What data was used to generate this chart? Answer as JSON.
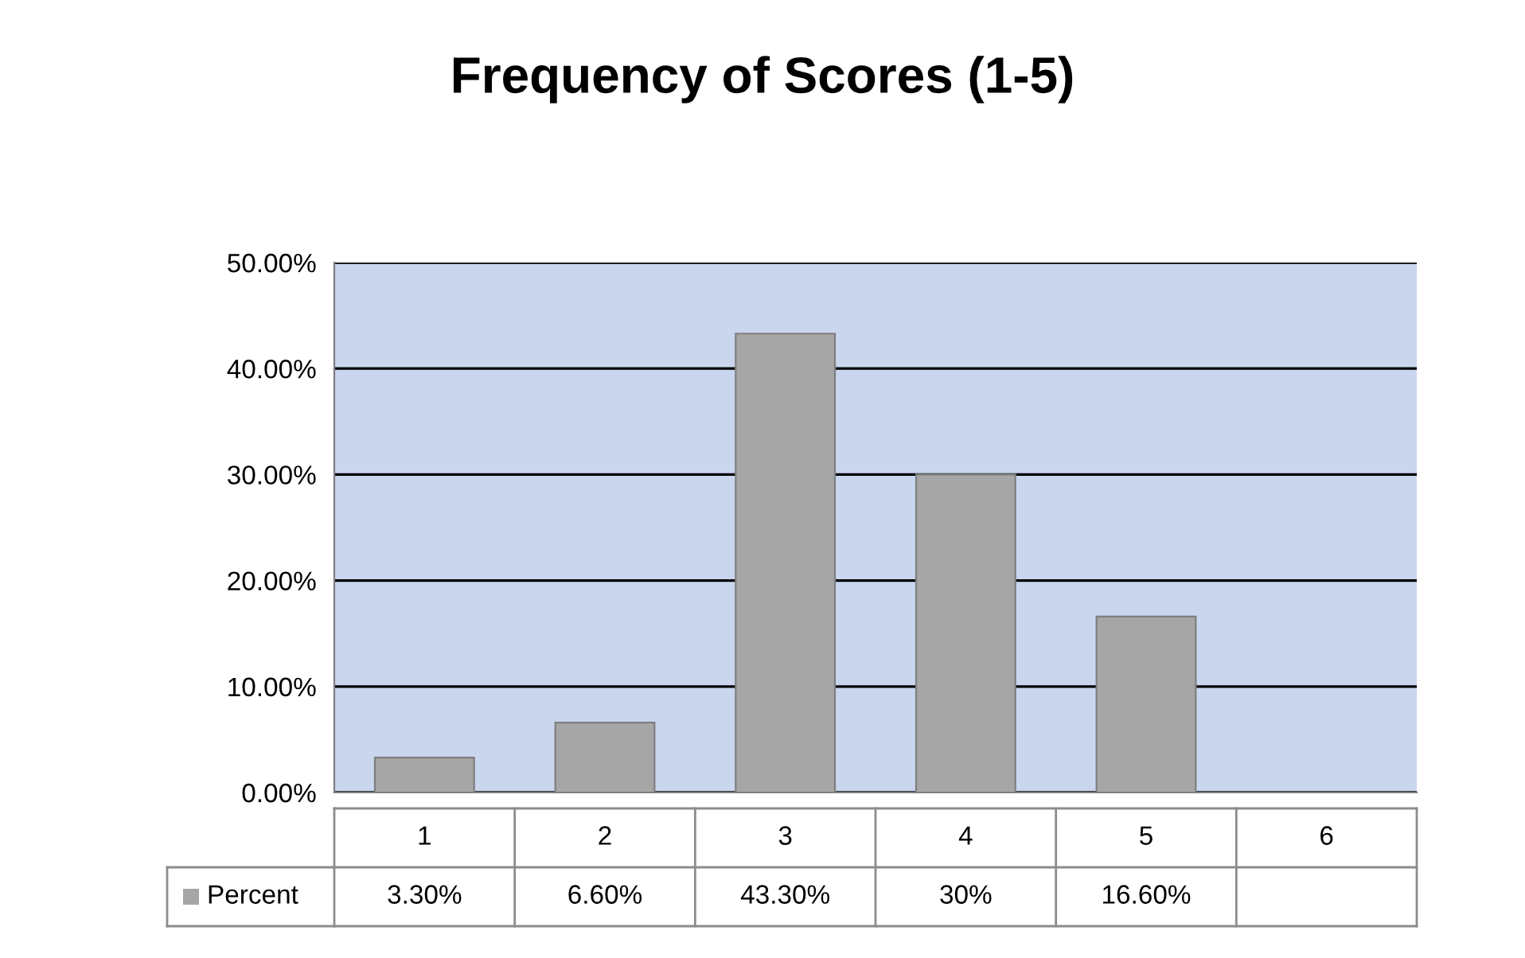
{
  "chart_data": {
    "type": "bar",
    "title": "Frequency of Scores (1-5)",
    "categories": [
      "1",
      "2",
      "3",
      "4",
      "5",
      "6"
    ],
    "series": [
      {
        "name": "Percent",
        "color": "#a6a6a6",
        "values": [
          3.3,
          6.6,
          43.3,
          30,
          16.6,
          null
        ],
        "value_labels": [
          "3.30%",
          "6.60%",
          "43.30%",
          "30%",
          "16.60%",
          null
        ]
      }
    ],
    "ylim": [
      0,
      50
    ],
    "yticks": [
      {
        "value": 0,
        "label": "0.00%"
      },
      {
        "value": 10,
        "label": "10.00%"
      },
      {
        "value": 20,
        "label": "20.00%"
      },
      {
        "value": 30,
        "label": "30.00%"
      },
      {
        "value": 40,
        "label": "40.00%"
      },
      {
        "value": 50,
        "label": "50.00%"
      }
    ],
    "grid": "y",
    "legend": "bottom"
  }
}
